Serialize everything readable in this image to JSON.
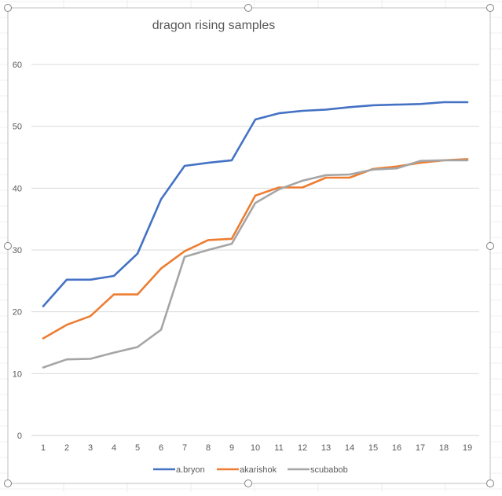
{
  "chart_data": {
    "type": "line",
    "title": "dragon rising samples",
    "xlabel": "",
    "ylabel": "",
    "x": [
      1,
      2,
      3,
      4,
      5,
      6,
      7,
      8,
      9,
      10,
      11,
      12,
      13,
      14,
      15,
      16,
      17,
      18,
      19
    ],
    "yticks": [
      0,
      10,
      20,
      30,
      40,
      50,
      60
    ],
    "ylim": [
      0,
      60
    ],
    "grid": true,
    "legend": "bottom",
    "series": [
      {
        "name": "a.bryon",
        "color": "#4472C4",
        "values": [
          20.9,
          25.2,
          25.2,
          25.8,
          29.4,
          38.2,
          43.6,
          44.1,
          44.5,
          51.1,
          52.1,
          52.5,
          52.7,
          53.1,
          53.4,
          53.5,
          53.6,
          53.9,
          53.9
        ]
      },
      {
        "name": "akarishok",
        "color": "#ED7D31",
        "values": [
          15.7,
          17.9,
          19.3,
          22.8,
          22.8,
          27.0,
          29.8,
          31.6,
          31.8,
          38.8,
          40.1,
          40.1,
          41.7,
          41.7,
          43.1,
          43.5,
          44.1,
          44.5,
          44.7
        ]
      },
      {
        "name": "scubabob",
        "color": "#A5A5A5",
        "values": [
          11.0,
          12.3,
          12.4,
          13.4,
          14.3,
          17.1,
          28.9,
          30.0,
          31.0,
          37.6,
          39.8,
          41.2,
          42.1,
          42.2,
          43.0,
          43.2,
          44.4,
          44.5,
          44.5
        ]
      }
    ]
  }
}
